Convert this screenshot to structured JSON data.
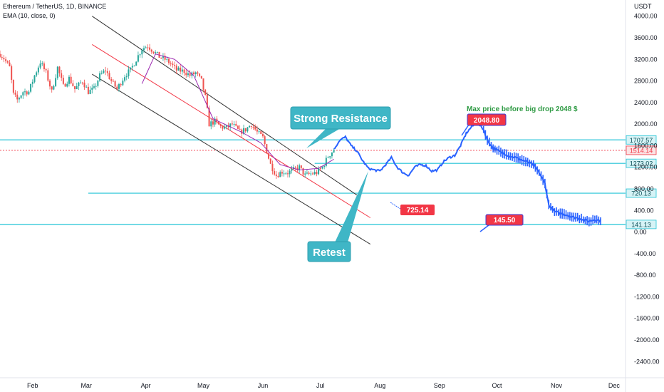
{
  "header": {
    "symbol": "Ethereum / TetherUS, 1D, BINANCE",
    "indicator": "EMA (10, close, 0)",
    "currency": "USDT"
  },
  "colors": {
    "up": "#26a69a",
    "down": "#ef5350",
    "projection": "#2962ff",
    "ema": "#9c27b0",
    "level_line": "#22c3d6",
    "channel_black": "#333333",
    "channel_red": "#f23645",
    "callout_bg": "#3fb6c6",
    "label_red": "#f23645",
    "annotation_green": "#2e9a43"
  },
  "chart_data": {
    "type": "candlestick",
    "title": "Ethereum / TetherUS, 1D, BINANCE",
    "ylabel": "USDT",
    "ylim": [
      -2700,
      4300
    ],
    "y_ticks": [
      4000,
      3600,
      3200,
      2800,
      2400,
      2000,
      1600,
      1200,
      800,
      400,
      0,
      -400,
      -800,
      -1200,
      -1600,
      -2000,
      -2400
    ],
    "y_tick_labels": [
      "4000.00",
      "3600.00",
      "3200.00",
      "2800.00",
      "2400.00",
      "2000.00",
      "1600.00",
      "1200.00",
      "800.00",
      "400.00",
      "0.00",
      "-400.00",
      "-800.00",
      "-1200.00",
      "-1600.00",
      "-2000.00",
      "-2400.00"
    ],
    "x_ticks": [
      {
        "label": "Feb",
        "day": 31
      },
      {
        "label": "Mar",
        "day": 59
      },
      {
        "label": "Apr",
        "day": 90
      },
      {
        "label": "May",
        "day": 120
      },
      {
        "label": "Jun",
        "day": 151
      },
      {
        "label": "Jul",
        "day": 181
      },
      {
        "label": "Aug",
        "day": 212
      },
      {
        "label": "Sep",
        "day": 243
      },
      {
        "label": "Oct",
        "day": 273
      },
      {
        "label": "Nov",
        "day": 304
      },
      {
        "label": "Dec",
        "day": 334
      }
    ],
    "x_range_days": [
      14,
      340
    ],
    "historical_anchors": [
      [
        14,
        3300
      ],
      [
        16,
        3220
      ],
      [
        19,
        3050
      ],
      [
        21,
        2550
      ],
      [
        23,
        2450
      ],
      [
        26,
        2600
      ],
      [
        29,
        2600
      ],
      [
        32,
        2900
      ],
      [
        35,
        3150
      ],
      [
        38,
        2950
      ],
      [
        41,
        2600
      ],
      [
        44,
        3050
      ],
      [
        47,
        2700
      ],
      [
        50,
        2850
      ],
      [
        53,
        2650
      ],
      [
        57,
        2800
      ],
      [
        60,
        2600
      ],
      [
        63,
        2650
      ],
      [
        66,
        2900
      ],
      [
        69,
        3000
      ],
      [
        72,
        2800
      ],
      [
        75,
        2650
      ],
      [
        79,
        2900
      ],
      [
        82,
        3000
      ],
      [
        85,
        3200
      ],
      [
        88,
        3400
      ],
      [
        91,
        3450
      ],
      [
        94,
        3350
      ],
      [
        97,
        3250
      ],
      [
        100,
        3200
      ],
      [
        103,
        3120
      ],
      [
        106,
        3000
      ],
      [
        110,
        2980
      ],
      [
        113,
        2900
      ],
      [
        116,
        2950
      ],
      [
        119,
        2800
      ],
      [
        121,
        2500
      ],
      [
        123,
        2000
      ],
      [
        126,
        2050
      ],
      [
        129,
        1950
      ],
      [
        132,
        1930
      ],
      [
        135,
        2000
      ],
      [
        139,
        1850
      ],
      [
        142,
        1900
      ],
      [
        145,
        2000
      ],
      [
        148,
        1850
      ],
      [
        151,
        1750
      ],
      [
        153,
        1500
      ],
      [
        155,
        1250
      ],
      [
        158,
        1050
      ],
      [
        161,
        1120
      ],
      [
        164,
        1100
      ],
      [
        167,
        1150
      ],
      [
        170,
        1200
      ],
      [
        173,
        1050
      ],
      [
        176,
        1080
      ],
      [
        179,
        1100
      ],
      [
        182,
        1200
      ],
      [
        185,
        1400
      ],
      [
        188,
        1530
      ]
    ],
    "projection_anchors": [
      [
        188,
        1530
      ],
      [
        191,
        1700
      ],
      [
        194,
        1760
      ],
      [
        197,
        1600
      ],
      [
        200,
        1500
      ],
      [
        203,
        1320
      ],
      [
        206,
        1180
      ],
      [
        209,
        1150
      ],
      [
        212,
        1130
      ],
      [
        215,
        1250
      ],
      [
        218,
        1380
      ],
      [
        221,
        1200
      ],
      [
        224,
        1100
      ],
      [
        227,
        1050
      ],
      [
        230,
        1200
      ],
      [
        233,
        1250
      ],
      [
        236,
        1230
      ],
      [
        239,
        1130
      ],
      [
        242,
        1150
      ],
      [
        245,
        1300
      ],
      [
        248,
        1380
      ],
      [
        251,
        1420
      ],
      [
        254,
        1600
      ],
      [
        257,
        1830
      ],
      [
        260,
        1960
      ],
      [
        263,
        2020
      ],
      [
        266,
        1900
      ],
      [
        268,
        1700
      ],
      [
        271,
        1550
      ],
      [
        274,
        1500
      ],
      [
        277,
        1450
      ],
      [
        280,
        1400
      ],
      [
        283,
        1380
      ],
      [
        286,
        1330
      ],
      [
        289,
        1300
      ],
      [
        292,
        1250
      ],
      [
        295,
        1100
      ],
      [
        298,
        900
      ],
      [
        300,
        500
      ],
      [
        303,
        380
      ],
      [
        306,
        350
      ],
      [
        309,
        320
      ],
      [
        312,
        280
      ],
      [
        315,
        260
      ],
      [
        318,
        230
      ],
      [
        321,
        200
      ],
      [
        324,
        230
      ],
      [
        327,
        210
      ]
    ],
    "ema_anchors": [
      [
        88,
        2750
      ],
      [
        95,
        3300
      ],
      [
        105,
        3200
      ],
      [
        115,
        2900
      ],
      [
        125,
        2100
      ],
      [
        140,
        1850
      ],
      [
        150,
        1650
      ],
      [
        160,
        1250
      ],
      [
        170,
        1150
      ],
      [
        180,
        1180
      ],
      [
        188,
        1350
      ]
    ],
    "horizontal_levels": [
      {
        "value": 1707.57,
        "label": "1707.57",
        "x_start_day": 14
      },
      {
        "value": 1514.14,
        "label": "1514.14",
        "x_start_day": 14,
        "dashed": true
      },
      {
        "value": 1273.02,
        "label": "1273.02",
        "x_start_day": 178
      },
      {
        "value": 720.13,
        "label": "720.13",
        "x_start_day": 60
      },
      {
        "value": 141.13,
        "label": "141.13",
        "x_start_day": 14
      }
    ],
    "channel_lines": [
      {
        "from": [
          62,
          4000
        ],
        "to": [
          200,
          685
        ],
        "color": "black"
      },
      {
        "from": [
          62,
          3475
        ],
        "to": [
          207,
          265
        ],
        "color": "red"
      },
      {
        "from": [
          62,
          2925
        ],
        "to": [
          207,
          -225
        ],
        "color": "black"
      }
    ],
    "annotations": {
      "strong_resistance": "Strong Resistance",
      "retest": "Retest",
      "max_price_note": "Max price before big drop 2048 $",
      "max_label": "2048.80",
      "low_label": "725.14",
      "target_label": "145.50"
    }
  }
}
